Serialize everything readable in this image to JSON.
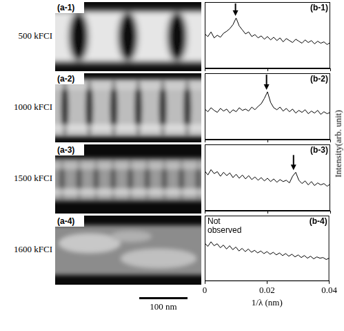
{
  "rows": [
    {
      "label": "500 kFCI",
      "image_panel": "(a-1)"
    },
    {
      "label": "1000 kFCI",
      "image_panel": "(a-2)"
    },
    {
      "label": "1500 kFCI",
      "image_panel": "(a-3)"
    },
    {
      "label": "1600 kFCI",
      "image_panel": "(a-4)"
    }
  ],
  "scale_bar": {
    "label": "100 nm",
    "length_nm": 100
  },
  "y_label": "Intensity(arb. unit)",
  "chart_data": [
    {
      "type": "line",
      "panel": "(b-1)",
      "color": "#000000",
      "grid": false,
      "tick_labels": false,
      "xlim": [
        0,
        0.04
      ],
      "xticks": [
        0,
        0.02,
        0.04
      ],
      "ylim": [
        0,
        10
      ],
      "peak_x": 0.0098,
      "x": [
        0,
        0.001,
        0.002,
        0.003,
        0.004,
        0.005,
        0.006,
        0.007,
        0.008,
        0.009,
        0.01,
        0.011,
        0.012,
        0.013,
        0.014,
        0.015,
        0.016,
        0.017,
        0.018,
        0.019,
        0.02,
        0.021,
        0.022,
        0.023,
        0.024,
        0.025,
        0.026,
        0.027,
        0.028,
        0.029,
        0.03,
        0.031,
        0.032,
        0.033,
        0.034,
        0.035,
        0.036,
        0.037,
        0.038,
        0.039,
        0.04
      ],
      "values": [
        5.2,
        4.8,
        5.5,
        4.6,
        5.0,
        4.7,
        5.3,
        5.6,
        6.0,
        6.6,
        7.6,
        6.4,
        5.8,
        5.2,
        5.5,
        4.8,
        5.1,
        4.6,
        4.9,
        4.4,
        4.8,
        4.3,
        4.7,
        4.2,
        4.6,
        4.0,
        4.5,
        4.2,
        3.9,
        4.4,
        4.1,
        3.8,
        4.3,
        3.9,
        4.2,
        3.7,
        4.1,
        3.8,
        4.0,
        3.6,
        3.9
      ]
    },
    {
      "type": "line",
      "panel": "(b-2)",
      "color": "#000000",
      "grid": false,
      "tick_labels": false,
      "xlim": [
        0,
        0.04
      ],
      "xticks": [
        0,
        0.02,
        0.04
      ],
      "ylim": [
        0,
        10
      ],
      "peak_x": 0.0197,
      "x": [
        0,
        0.001,
        0.002,
        0.003,
        0.004,
        0.005,
        0.006,
        0.007,
        0.008,
        0.009,
        0.01,
        0.011,
        0.012,
        0.013,
        0.014,
        0.015,
        0.016,
        0.017,
        0.018,
        0.019,
        0.02,
        0.021,
        0.022,
        0.023,
        0.024,
        0.025,
        0.026,
        0.027,
        0.028,
        0.029,
        0.03,
        0.031,
        0.032,
        0.033,
        0.034,
        0.035,
        0.036,
        0.037,
        0.038,
        0.039,
        0.04
      ],
      "values": [
        4.6,
        4.2,
        4.8,
        4.4,
        4.1,
        4.7,
        4.3,
        4.6,
        4.0,
        4.5,
        4.2,
        4.8,
        4.4,
        4.6,
        4.3,
        4.9,
        4.5,
        5.0,
        5.4,
        6.2,
        7.2,
        5.6,
        4.8,
        4.5,
        4.9,
        4.3,
        4.7,
        4.2,
        4.6,
        4.0,
        4.4,
        4.1,
        4.5,
        3.9,
        4.3,
        4.0,
        4.4,
        3.8,
        4.2,
        3.9,
        4.1
      ]
    },
    {
      "type": "line",
      "panel": "(b-3)",
      "color": "#000000",
      "grid": false,
      "tick_labels": false,
      "xlim": [
        0,
        0.04
      ],
      "xticks": [
        0,
        0.02,
        0.04
      ],
      "ylim": [
        0,
        10
      ],
      "peak_x": 0.0283,
      "x": [
        0,
        0.001,
        0.002,
        0.003,
        0.004,
        0.005,
        0.006,
        0.007,
        0.008,
        0.009,
        0.01,
        0.011,
        0.012,
        0.013,
        0.014,
        0.015,
        0.016,
        0.017,
        0.018,
        0.019,
        0.02,
        0.021,
        0.022,
        0.023,
        0.024,
        0.025,
        0.026,
        0.027,
        0.028,
        0.029,
        0.03,
        0.031,
        0.032,
        0.033,
        0.034,
        0.035,
        0.036,
        0.037,
        0.038,
        0.039,
        0.04
      ],
      "values": [
        6.0,
        5.4,
        6.2,
        5.6,
        5.9,
        5.2,
        5.8,
        5.3,
        5.7,
        5.0,
        5.5,
        4.9,
        5.4,
        4.8,
        5.3,
        4.7,
        5.1,
        4.6,
        5.0,
        4.5,
        4.9,
        4.4,
        4.8,
        4.3,
        4.7,
        4.4,
        4.6,
        4.2,
        5.2,
        5.8,
        4.6,
        4.1,
        4.5,
        3.9,
        4.4,
        3.8,
        4.2,
        3.9,
        4.1,
        3.7,
        4.0
      ]
    },
    {
      "type": "line",
      "panel": "(b-4)",
      "color": "#000000",
      "grid": false,
      "tick_labels": "x",
      "xlim": [
        0,
        0.04
      ],
      "xticks": [
        0,
        0.02,
        0.04
      ],
      "ylim": [
        0,
        10
      ],
      "x_label": "1/λ (nm)",
      "annotations": [
        "Not observed"
      ],
      "x": [
        0,
        0.001,
        0.002,
        0.003,
        0.004,
        0.005,
        0.006,
        0.007,
        0.008,
        0.009,
        0.01,
        0.011,
        0.012,
        0.013,
        0.014,
        0.015,
        0.016,
        0.017,
        0.018,
        0.019,
        0.02,
        0.021,
        0.022,
        0.023,
        0.024,
        0.025,
        0.026,
        0.027,
        0.028,
        0.029,
        0.03,
        0.031,
        0.032,
        0.033,
        0.034,
        0.035,
        0.036,
        0.037,
        0.038,
        0.039,
        0.04
      ],
      "values": [
        5.8,
        5.3,
        6.0,
        5.4,
        5.7,
        5.1,
        5.5,
        4.9,
        5.4,
        4.8,
        5.2,
        4.6,
        5.0,
        4.5,
        4.9,
        4.4,
        4.7,
        4.3,
        4.6,
        4.2,
        4.5,
        4.1,
        4.4,
        4.0,
        4.3,
        3.9,
        4.2,
        3.8,
        4.1,
        3.7,
        4.0,
        3.6,
        3.9,
        3.5,
        3.8,
        3.4,
        3.7,
        3.5,
        3.6,
        3.3,
        3.5
      ]
    }
  ]
}
